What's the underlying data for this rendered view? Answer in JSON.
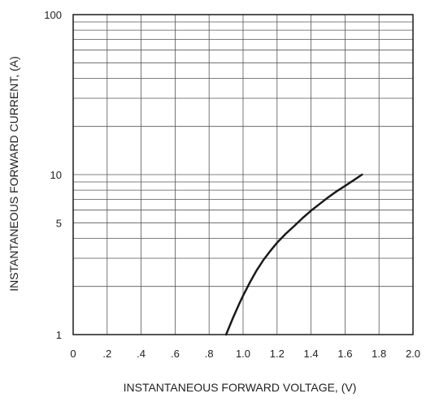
{
  "chart_data": {
    "type": "line",
    "xlabel": "INSTANTANEOUS FORWARD VOLTAGE, (V)",
    "ylabel": "INSTANTANEOUS FORWARD CURRENT, (A)",
    "xlim": [
      0,
      2.0
    ],
    "ylim": [
      1,
      100
    ],
    "y_scale": "log",
    "grid": true,
    "legend": "none",
    "x_ticks": [
      0,
      0.2,
      0.4,
      0.6,
      0.8,
      1.0,
      1.2,
      1.4,
      1.6,
      1.8,
      2.0
    ],
    "x_tick_labels": [
      "0",
      ".2",
      ".4",
      ".6",
      ".8",
      "1.0",
      "1.2",
      "1.4",
      "1.6",
      "1.8",
      "2.0"
    ],
    "y_ticks": [
      1,
      5,
      10,
      100
    ],
    "y_tick_labels": [
      "1",
      "5",
      "10",
      "100"
    ],
    "line_color": "#1a1a1a",
    "grid_color": "#555555",
    "series": [
      {
        "x": [
          0.9,
          0.94,
          0.98,
          1.0,
          1.04,
          1.08,
          1.12,
          1.16,
          1.2,
          1.25,
          1.3,
          1.35,
          1.4,
          1.45,
          1.5,
          1.55,
          1.6,
          1.65,
          1.7
        ],
        "y": [
          1.0,
          1.27,
          1.58,
          1.75,
          2.12,
          2.52,
          2.93,
          3.33,
          3.75,
          4.26,
          4.76,
          5.35,
          5.95,
          6.55,
          7.2,
          7.85,
          8.5,
          9.2,
          10.0
        ]
      }
    ]
  }
}
